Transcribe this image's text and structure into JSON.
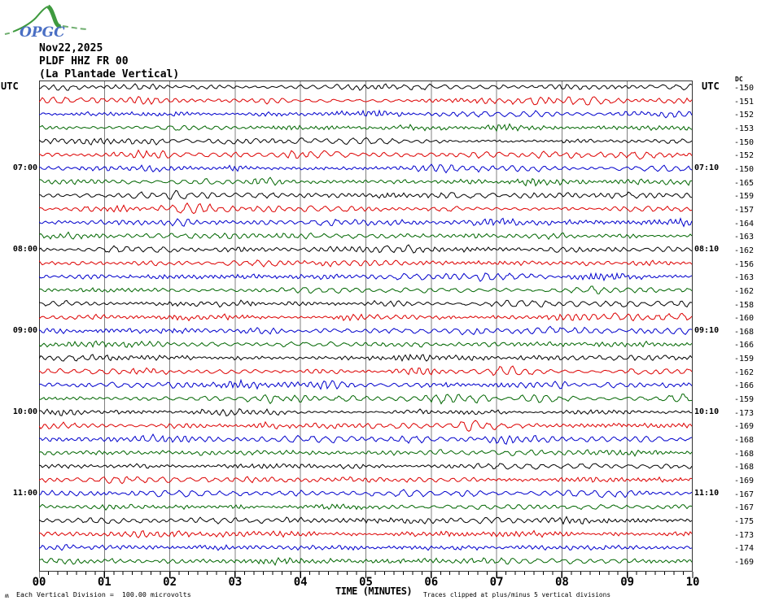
{
  "logo": {
    "text": "OPGC",
    "curve_color": "#3f9a3f",
    "dash_color": "#6fae6f",
    "text_color": "#4a6fc4"
  },
  "header": {
    "date": "Nov22,2025",
    "channel": "PLDF HHZ FR 00",
    "station": "(La Plantade Vertical)"
  },
  "axes": {
    "utc_left_header": "UTC",
    "utc_right_header": "UTC",
    "dc_header": "DC",
    "x_title": "TIME (MINUTES)",
    "footnote_scale": "Each Vertical Division =  100.00 microvolts",
    "footnote_clip": "Traces clipped at plus/minus 5 vertical divisions",
    "corner_glyph": "ʍ"
  },
  "colors": {
    "black": "#000000",
    "red": "#dd0000",
    "blue": "#0000cc",
    "green": "#006600",
    "grid": "#808080",
    "border": "#333333"
  },
  "chart_data": {
    "type": "line",
    "subtype": "helicorder-seismogram",
    "title": "PLDF HHZ FR 00 (La Plantade Vertical) Nov22,2025",
    "row_duration_minutes": 10,
    "x_axis": {
      "title": "TIME (MINUTES)",
      "range": [
        0,
        10
      ],
      "ticks": [
        "00",
        "01",
        "02",
        "03",
        "04",
        "05",
        "06",
        "07",
        "08",
        "09",
        "10"
      ],
      "minor_ticks_per_interval": 6
    },
    "y_scale": {
      "volts_per_division": "100.00 microvolts",
      "clipping": "plus/minus 5 vertical divisions"
    },
    "rows": [
      {
        "utc_left": "",
        "utc_right": "",
        "dc": "-150",
        "color": "black"
      },
      {
        "utc_left": "",
        "utc_right": "",
        "dc": "-151",
        "color": "red"
      },
      {
        "utc_left": "",
        "utc_right": "",
        "dc": "-152",
        "color": "blue"
      },
      {
        "utc_left": "",
        "utc_right": "",
        "dc": "-153",
        "color": "green"
      },
      {
        "utc_left": "",
        "utc_right": "",
        "dc": "-150",
        "color": "black"
      },
      {
        "utc_left": "",
        "utc_right": "",
        "dc": "-152",
        "color": "red"
      },
      {
        "utc_left": "07:00",
        "utc_right": "07:10",
        "dc": "-150",
        "color": "blue"
      },
      {
        "utc_left": "",
        "utc_right": "",
        "dc": "-165",
        "color": "green"
      },
      {
        "utc_left": "",
        "utc_right": "",
        "dc": "-159",
        "color": "black"
      },
      {
        "utc_left": "",
        "utc_right": "",
        "dc": "-157",
        "color": "red"
      },
      {
        "utc_left": "",
        "utc_right": "",
        "dc": "-164",
        "color": "blue"
      },
      {
        "utc_left": "",
        "utc_right": "",
        "dc": "-163",
        "color": "green"
      },
      {
        "utc_left": "08:00",
        "utc_right": "08:10",
        "dc": "-162",
        "color": "black"
      },
      {
        "utc_left": "",
        "utc_right": "",
        "dc": "-156",
        "color": "red"
      },
      {
        "utc_left": "",
        "utc_right": "",
        "dc": "-163",
        "color": "blue"
      },
      {
        "utc_left": "",
        "utc_right": "",
        "dc": "-162",
        "color": "green"
      },
      {
        "utc_left": "",
        "utc_right": "",
        "dc": "-158",
        "color": "black"
      },
      {
        "utc_left": "",
        "utc_right": "",
        "dc": "-160",
        "color": "red"
      },
      {
        "utc_left": "09:00",
        "utc_right": "09:10",
        "dc": "-168",
        "color": "blue"
      },
      {
        "utc_left": "",
        "utc_right": "",
        "dc": "-166",
        "color": "green"
      },
      {
        "utc_left": "",
        "utc_right": "",
        "dc": "-159",
        "color": "black"
      },
      {
        "utc_left": "",
        "utc_right": "",
        "dc": "-162",
        "color": "red"
      },
      {
        "utc_left": "",
        "utc_right": "",
        "dc": "-166",
        "color": "blue"
      },
      {
        "utc_left": "",
        "utc_right": "",
        "dc": "-159",
        "color": "green"
      },
      {
        "utc_left": "10:00",
        "utc_right": "10:10",
        "dc": "-173",
        "color": "black"
      },
      {
        "utc_left": "",
        "utc_right": "",
        "dc": "-169",
        "color": "red"
      },
      {
        "utc_left": "",
        "utc_right": "",
        "dc": "-168",
        "color": "blue"
      },
      {
        "utc_left": "",
        "utc_right": "",
        "dc": "-168",
        "color": "green"
      },
      {
        "utc_left": "",
        "utc_right": "",
        "dc": "-168",
        "color": "black"
      },
      {
        "utc_left": "",
        "utc_right": "",
        "dc": "-169",
        "color": "red"
      },
      {
        "utc_left": "11:00",
        "utc_right": "11:10",
        "dc": "-167",
        "color": "blue"
      },
      {
        "utc_left": "",
        "utc_right": "",
        "dc": "-167",
        "color": "green"
      },
      {
        "utc_left": "",
        "utc_right": "",
        "dc": "-175",
        "color": "black"
      },
      {
        "utc_left": "",
        "utc_right": "",
        "dc": "-173",
        "color": "red"
      },
      {
        "utc_left": "",
        "utc_right": "",
        "dc": "-174",
        "color": "blue"
      },
      {
        "utc_left": "",
        "utc_right": "",
        "dc": "-169",
        "color": "green"
      }
    ]
  }
}
